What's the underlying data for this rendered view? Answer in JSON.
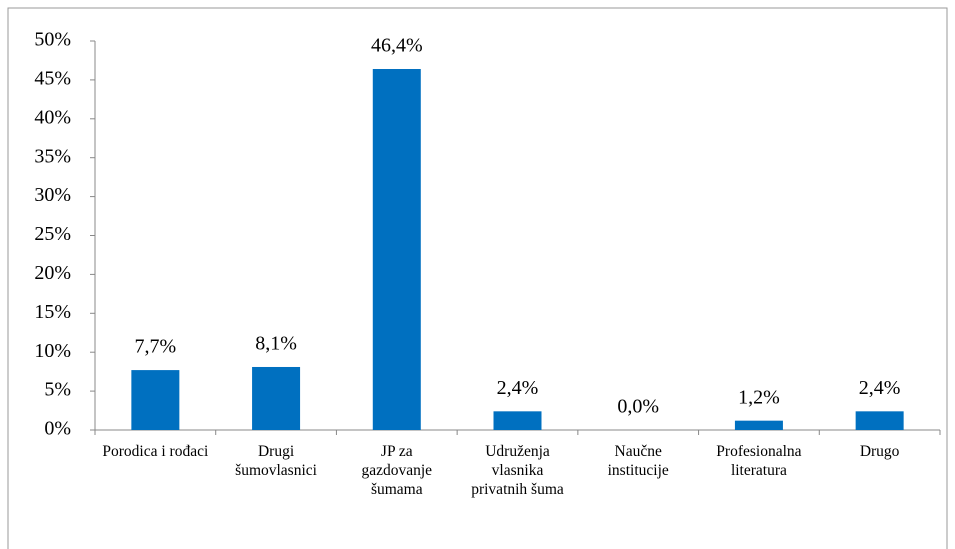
{
  "chart_data": {
    "type": "bar",
    "categories": [
      "Porodica i rođaci",
      "Drugi šumovlasnici",
      "JP za gazdovanje šumama",
      "Udruženja vlasnika privatnih šuma",
      "Naučne institucije",
      "Profesionalna literatura",
      "Drugo"
    ],
    "values": [
      7.7,
      8.1,
      46.4,
      2.4,
      0.0,
      1.2,
      2.4
    ],
    "value_labels": [
      "7,7%",
      "8,1%",
      "46,4%",
      "2,4%",
      "0,0%",
      "1,2%",
      "2,4%"
    ],
    "color": "#0070c0",
    "ylim": [
      0,
      50
    ],
    "yticks": [
      {
        "value": 0,
        "label": "0%"
      },
      {
        "value": 5,
        "label": "5%"
      },
      {
        "value": 10,
        "label": "10%"
      },
      {
        "value": 15,
        "label": "15%"
      },
      {
        "value": 20,
        "label": "20%"
      },
      {
        "value": 25,
        "label": "25%"
      },
      {
        "value": 30,
        "label": "30%"
      },
      {
        "value": 35,
        "label": "35%"
      },
      {
        "value": 40,
        "label": "40%"
      },
      {
        "value": 45,
        "label": "45%"
      },
      {
        "value": 50,
        "label": "50%"
      }
    ]
  }
}
